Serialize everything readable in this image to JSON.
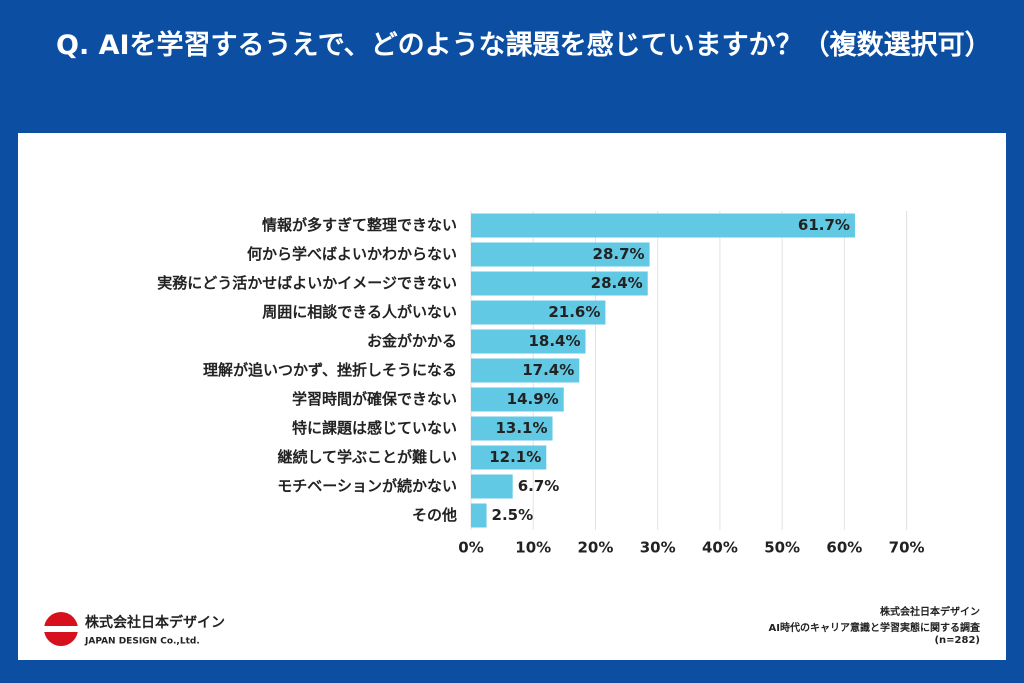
{
  "chart_data": {
    "type": "hbar",
    "title": "Q. AIを学習するうえで、どのような課題を感じていますか？（複数選択可）",
    "categories": [
      "情報が多すぎて整理できない",
      "何から学べばよいかわからない",
      "実務にどう活かせばよいかイメージできない",
      "周囲に相談できる人がいない",
      "お金がかかる",
      "理解が追いつかず、挫折しそうになる",
      "学習時間が確保できない",
      "特に課題は感じていない",
      "継続して学ぶことが難しい",
      "モチベーションが続かない",
      "その他"
    ],
    "values": [
      61.7,
      28.7,
      28.4,
      21.6,
      18.4,
      17.4,
      14.9,
      13.1,
      12.1,
      6.7,
      2.5
    ],
    "value_labels": [
      "61.7%",
      "28.7%",
      "28.4%",
      "21.6%",
      "18.4%",
      "17.4%",
      "14.9%",
      "13.1%",
      "12.1%",
      "6.7%",
      "2.5%"
    ],
    "color": "#62c9e5",
    "xlim": [
      0,
      70
    ],
    "xticks": [
      {
        "value": 0,
        "label": "0%"
      },
      {
        "value": 10,
        "label": "10%"
      },
      {
        "value": 20,
        "label": "20%"
      },
      {
        "value": 30,
        "label": "30%"
      },
      {
        "value": 40,
        "label": "40%"
      },
      {
        "value": 50,
        "label": "50%"
      },
      {
        "value": 60,
        "label": "60%"
      },
      {
        "value": 70,
        "label": "70%"
      }
    ],
    "grid": true
  },
  "logo": {
    "name_ja": "株式会社日本デザイン",
    "name_en": "JAPAN DESIGN Co.,Ltd."
  },
  "source": [
    "株式会社日本デザイン",
    "AI時代のキャリア意識と学習実態に関する調査",
    "(n=282)"
  ]
}
